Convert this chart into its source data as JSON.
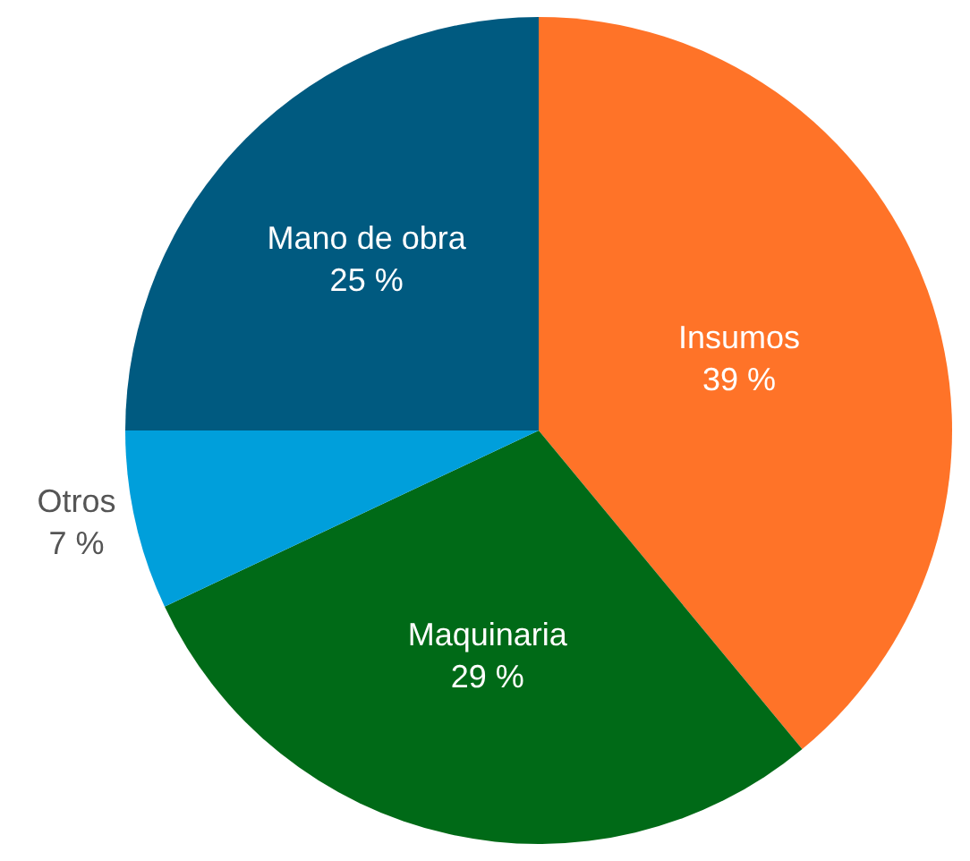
{
  "chart_data": {
    "type": "pie",
    "categories": [
      "Insumos",
      "Maquinaria",
      "Otros",
      "Mano de obra"
    ],
    "values": [
      39,
      29,
      7,
      25
    ],
    "value_labels": [
      "39 %",
      "29 %",
      "7 %",
      "25 %"
    ],
    "colors": [
      "#ff7328",
      "#006a17",
      "#009fdb",
      "#005a80"
    ],
    "legend": false
  }
}
